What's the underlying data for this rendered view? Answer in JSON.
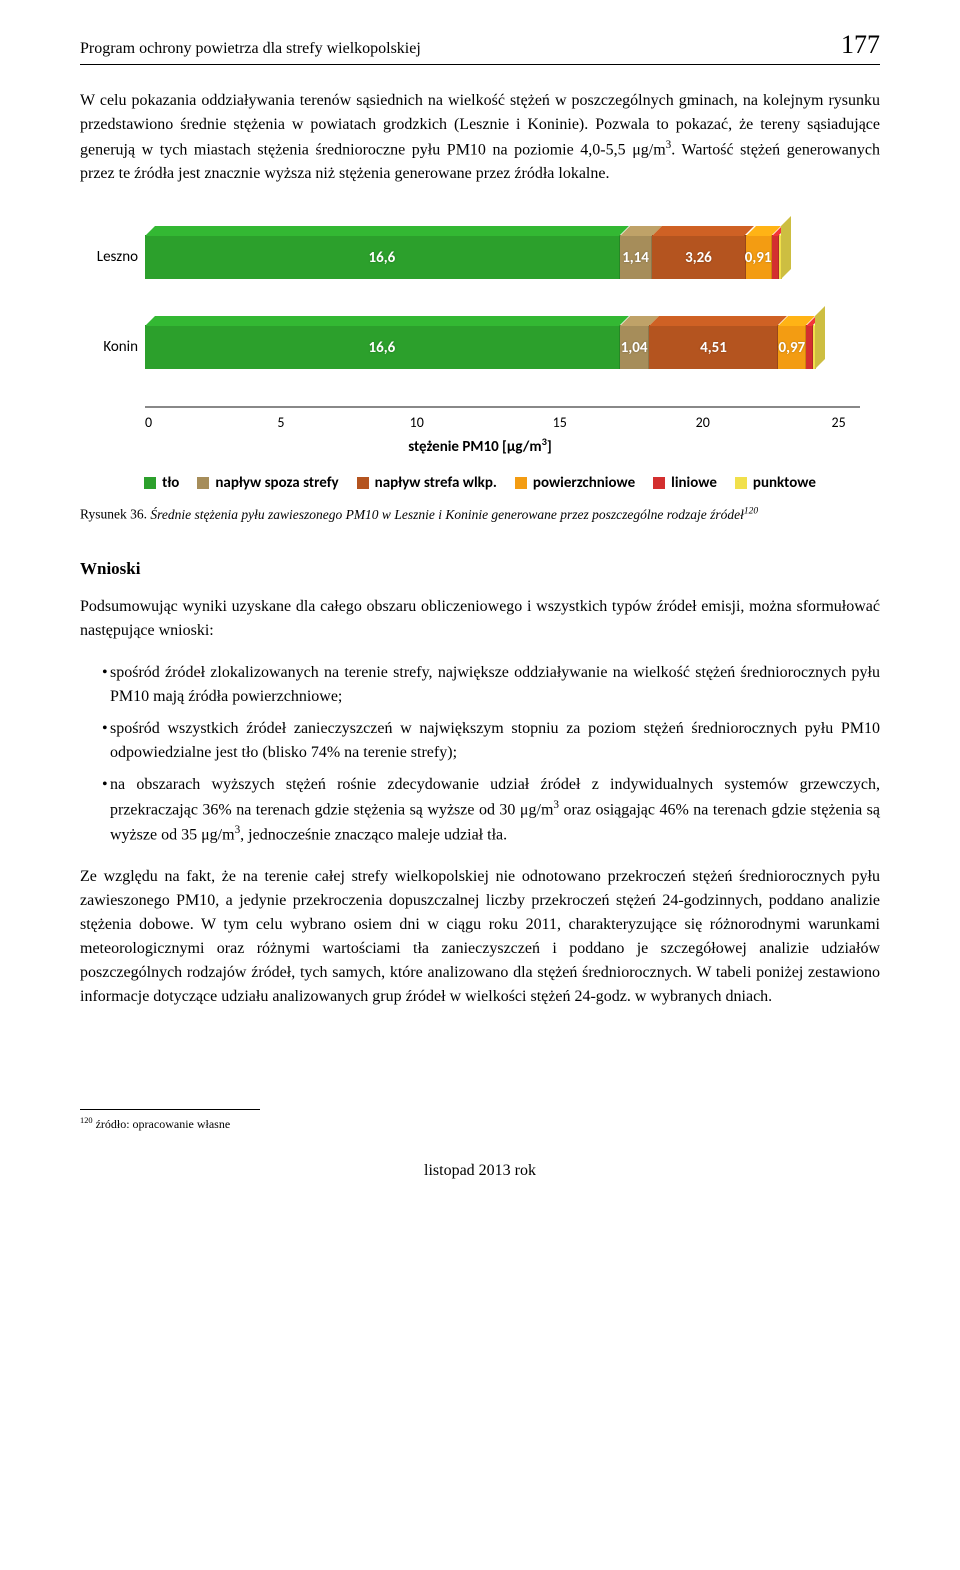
{
  "header": {
    "title": "Program ochrony powietrza dla strefy wielkopolskiej",
    "page_number": "177"
  },
  "intro_html": "W celu pokazania oddziaływania terenów sąsiednich na wielkość stężeń w poszczególnych gminach, na kolejnym rysunku przedstawiono średnie stężenia w powiatach grodzkich (Lesznie i Koninie). Pozwala to pokazać, że tereny sąsiadujące generują w tych miastach stężenia średnioroczne pyłu PM10 na poziomie 4,0-5,5 μg/m<sup>3</sup>. Wartość stężeń generowanych przez te źródła jest znacznie wyższa niż stężenia generowane przez źródła lokalne.",
  "chart": {
    "type": "stacked-bar-h",
    "x_label_html": "stężenie PM10 [μg/m<sup>3</sup>]",
    "x_max": 25,
    "x_ticks": [
      "0",
      "5",
      "10",
      "15",
      "20",
      "25"
    ],
    "categories": [
      "Leszno",
      "Konin"
    ],
    "series": [
      {
        "key": "tlo",
        "label": "tło",
        "color": "#2ca02c"
      },
      {
        "key": "spoza",
        "label": "napływ spoza strefy",
        "color": "#a68d5a"
      },
      {
        "key": "wlkp",
        "label": "napływ strefa wlkp.",
        "color": "#b4541f"
      },
      {
        "key": "pow",
        "label": "powierzchniowe",
        "color": "#f39c12"
      },
      {
        "key": "lin",
        "label": "liniowe",
        "color": "#d32f2f"
      },
      {
        "key": "pkt",
        "label": "punktowe",
        "color": "#f1e04c"
      }
    ],
    "rows": [
      {
        "label": "Leszno",
        "segments": [
          {
            "key": "tlo",
            "value": 16.6,
            "text": "16,6"
          },
          {
            "key": "spoza",
            "value": 1.14,
            "text": "1,14"
          },
          {
            "key": "wlkp",
            "value": 3.26,
            "text": "3,26"
          },
          {
            "key": "pow",
            "value": 0.91,
            "text": "0,91"
          },
          {
            "key": "lin",
            "value": 0.25,
            "text": ""
          },
          {
            "key": "pkt",
            "value": 0.1,
            "text": ""
          }
        ]
      },
      {
        "label": "Konin",
        "segments": [
          {
            "key": "tlo",
            "value": 16.6,
            "text": "16,6"
          },
          {
            "key": "spoza",
            "value": 1.04,
            "text": "1,04"
          },
          {
            "key": "wlkp",
            "value": 4.51,
            "text": "4,51"
          },
          {
            "key": "pow",
            "value": 0.97,
            "text": "0,97"
          },
          {
            "key": "lin",
            "value": 0.25,
            "text": ""
          },
          {
            "key": "pkt",
            "value": 0.1,
            "text": ""
          }
        ]
      }
    ]
  },
  "figure_caption": {
    "label": "Rysunek 36. ",
    "text_html": "Średnie stężenia pyłu zawieszonego PM10 w Lesznie i Koninie generowane przez poszczególne rodzaje źródeł<sup>120</sup>"
  },
  "conclusions_title": "Wnioski",
  "conclusions_intro": "Podsumowując wyniki uzyskane dla całego obszaru obliczeniowego i wszystkich typów źródeł emisji, można sformułować następujące wnioski:",
  "bullets_html": [
    "spośród źródeł zlokalizowanych na terenie strefy, największe oddziaływanie na wielkość stężeń średniorocznych pyłu PM10 mają źródła powierzchniowe;",
    "spośród wszystkich źródeł zanieczyszczeń w największym stopniu za poziom stężeń średniorocznych pyłu PM10 odpowiedzialne jest tło (blisko 74% na terenie strefy);",
    "na obszarach wyższych stężeń rośnie zdecydowanie udział źródeł z indywidualnych systemów grzewczych, przekraczając 36% na terenach gdzie stężenia są wyższe od 30 μg/m<sup>3</sup> oraz osiągając 46% na terenach gdzie stężenia są wyższe od 35 μg/m<sup>3</sup>, jednocześnie znacząco maleje udział tła."
  ],
  "conclusions_para": "Ze względu na fakt, że na terenie całej strefy wielkopolskiej nie odnotowano przekroczeń stężeń średniorocznych pyłu zawieszonego PM10, a jedynie przekroczenia dopuszczalnej liczby przekroczeń stężeń 24-godzinnych, poddano analizie stężenia dobowe. W tym celu wybrano osiem dni w ciągu roku 2011, charakteryzujące się różnorodnymi warunkami meteorologicznymi oraz różnymi wartościami tła zanieczyszczeń i poddano je szczegółowej analizie udziałów poszczególnych rodzajów źródeł, tych samych, które analizowano dla stężeń średniorocznych. W tabeli poniżej zestawiono informacje dotyczące udziału analizowanych grup źródeł w wielkości stężeń 24-godz. w wybranych dniach.",
  "footnote_html": "<sup>120</sup> źródło: opracowanie własne",
  "footer": "listopad 2013 rok"
}
